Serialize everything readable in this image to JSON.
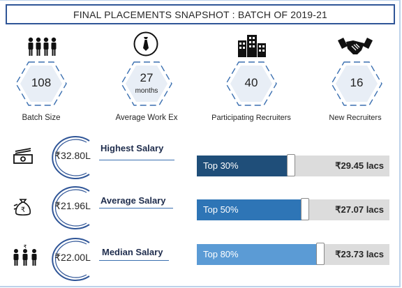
{
  "title": "FINAL PLACEMENTS SNAPSHOT : BATCH OF 2019-21",
  "stats": [
    {
      "value": "108",
      "unit": "",
      "label": "Batch Size",
      "icon": "group-icon"
    },
    {
      "value": "27",
      "unit": "months",
      "label": "Average Work Ex",
      "icon": "tie-icon"
    },
    {
      "value": "40",
      "unit": "",
      "label": "Participating Recruiters",
      "icon": "buildings-icon"
    },
    {
      "value": "16",
      "unit": "",
      "label": "New Recruiters",
      "icon": "handshake-icon"
    }
  ],
  "salaries": [
    {
      "amount": "₹32.80L",
      "label": "Highest Salary",
      "icon": "money-icon",
      "bar_label": "Top 30%",
      "bar_value": "₹29.45 lacs",
      "fill_fraction": 0.49,
      "bar_color": "#1f4e79"
    },
    {
      "amount": "₹21.96L",
      "label": "Average Salary",
      "icon": "money-bag-icon",
      "bar_label": "Top 50%",
      "bar_value": "₹27.07 lacs",
      "fill_fraction": 0.56,
      "bar_color": "#2e75b6"
    },
    {
      "amount": "₹22.00L",
      "label": "Median Salary",
      "icon": "people-money-icon",
      "bar_label": "Top 80%",
      "bar_value": "₹23.73 lacs",
      "fill_fraction": 0.64,
      "bar_color": "#5b9bd5"
    }
  ],
  "colors": {
    "title_border": "#2f5597",
    "hex_fill": "#e8eef6",
    "hex_dash": "#3a6fb0",
    "circle_stroke": "#2f5597",
    "bar_track": "#dcdcdc"
  }
}
